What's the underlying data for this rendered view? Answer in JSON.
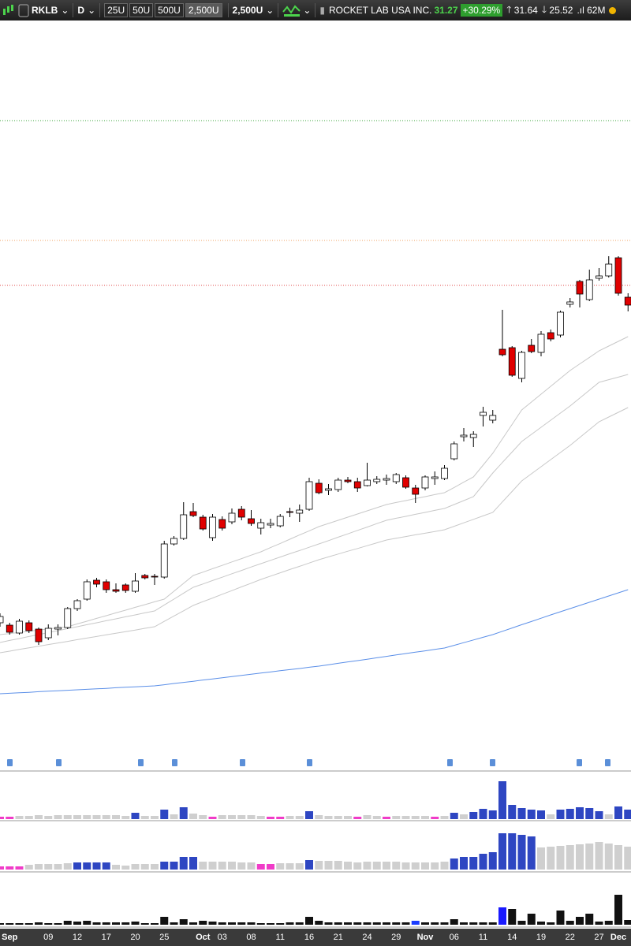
{
  "toolbar": {
    "symbol": "RKLB",
    "period": "D",
    "buttons": [
      "25U",
      "50U",
      "500U",
      "2,500U"
    ],
    "selected": "2,500U",
    "company": "ROCKET LAB USA INC.",
    "last": "31.27",
    "change": "+30.29%",
    "high": "31.64",
    "low": "25.52",
    "volume": "62M"
  },
  "chart_data": [
    {
      "type": "candlestick",
      "categories": [
        null,
        "Sep",
        null,
        null,
        null,
        "09",
        null,
        null,
        "12",
        null,
        null,
        "17",
        null,
        null,
        "20",
        null,
        null,
        "25",
        null,
        null,
        null,
        "Oct",
        null,
        "03",
        null,
        null,
        "08",
        null,
        null,
        "11",
        null,
        null,
        "16",
        null,
        null,
        "21",
        null,
        null,
        "24",
        null,
        null,
        "29",
        null,
        null,
        "Nov",
        null,
        null,
        "06",
        null,
        null,
        "11",
        null,
        null,
        "14",
        null,
        null,
        "19",
        null,
        null,
        "22",
        null,
        null,
        "27",
        null,
        "Dec",
        null
      ],
      "open": [
        8.25,
        8.1,
        7.6,
        8.25,
        7.85,
        7.3,
        7.85,
        7.95,
        9.15,
        9.75,
        10.95,
        10.85,
        10.35,
        10.65,
        10.25,
        11.25,
        11.2,
        11.15,
        13.25,
        13.6,
        15.3,
        14.95,
        13.65,
        14.8,
        14.65,
        15.45,
        14.85,
        14.25,
        14.45,
        14.4,
        15.3,
        15.2,
        15.45,
        17.1,
        16.65,
        16.7,
        17.3,
        17.2,
        16.95,
        17.2,
        17.3,
        17.2,
        17.45,
        16.8,
        16.8,
        17.4,
        17.4,
        18.65,
        20.05,
        20.0,
        21.4,
        21.1,
        25.6,
        25.7,
        23.75,
        25.85,
        25.4,
        26.65,
        26.5,
        28.45,
        29.9,
        28.75,
        30.1,
        30.25,
        31.4,
        28.9
      ],
      "high": [
        8.85,
        8.25,
        8.5,
        8.4,
        7.95,
        8.15,
        8.15,
        9.25,
        9.75,
        11.0,
        11.1,
        11.0,
        10.75,
        10.75,
        11.4,
        11.35,
        11.35,
        13.45,
        13.75,
        15.9,
        15.85,
        15.1,
        15.15,
        15.0,
        15.5,
        15.65,
        15.4,
        14.85,
        14.85,
        15.15,
        15.55,
        15.75,
        17.45,
        17.35,
        17.05,
        17.45,
        17.5,
        17.45,
        18.4,
        17.55,
        17.65,
        17.75,
        17.6,
        17.0,
        17.6,
        17.85,
        18.25,
        19.75,
        20.6,
        20.4,
        21.95,
        21.75,
        28.1,
        25.8,
        25.5,
        26.25,
        26.75,
        26.85,
        28.05,
        28.85,
        30.0,
        30.65,
        30.75,
        31.5,
        31.5,
        29.15
      ],
      "low": [
        8.0,
        7.5,
        7.5,
        7.6,
        6.85,
        7.15,
        7.45,
        7.85,
        9.0,
        9.65,
        10.5,
        10.15,
        10.15,
        10.15,
        10.15,
        11.0,
        10.65,
        11.05,
        13.15,
        13.5,
        14.95,
        14.1,
        13.45,
        14.1,
        14.5,
        14.75,
        14.4,
        13.85,
        14.25,
        14.3,
        14.95,
        14.65,
        15.35,
        16.4,
        16.35,
        16.55,
        17.1,
        16.55,
        16.9,
        17.05,
        17.0,
        17.05,
        16.75,
        15.85,
        16.65,
        17.0,
        17.3,
        18.55,
        19.75,
        19.4,
        20.7,
        20.9,
        25.15,
        23.85,
        23.5,
        25.35,
        25.15,
        26.1,
        26.35,
        28.25,
        28.25,
        28.65,
        29.95,
        30.15,
        29.0,
        28.0
      ],
      "close": [
        8.65,
        7.65,
        8.35,
        7.75,
        7.05,
        7.9,
        7.95,
        9.15,
        9.65,
        10.85,
        10.7,
        10.35,
        10.25,
        10.3,
        10.9,
        11.1,
        11.15,
        13.25,
        13.6,
        15.1,
        15.05,
        14.2,
        14.95,
        14.25,
        15.2,
        14.95,
        14.55,
        14.6,
        14.55,
        15.0,
        15.25,
        15.4,
        17.2,
        16.5,
        16.75,
        17.3,
        17.2,
        16.8,
        17.3,
        17.35,
        17.4,
        17.65,
        16.85,
        16.4,
        17.5,
        17.5,
        18.05,
        19.6,
        20.15,
        20.2,
        21.6,
        21.4,
        25.25,
        23.95,
        25.4,
        25.45,
        26.55,
        26.25,
        27.95,
        28.6,
        29.1,
        30.0,
        30.25,
        31.0,
        29.15,
        28.4
      ],
      "up_color": "#ffffff",
      "down_color": "#e00000",
      "ylim": [
        0,
        46.5
      ],
      "lines": [
        {
          "color": "#c8c8c8",
          "values": [
            7.5,
            7.57,
            7.64,
            7.71,
            7.79,
            7.86,
            7.93,
            8.0,
            8.18,
            8.35,
            8.53,
            8.7,
            8.88,
            9.05,
            9.23,
            9.4,
            9.58,
            9.75,
            10.25,
            10.75,
            11.25,
            11.46,
            11.68,
            11.89,
            12.11,
            12.32,
            12.54,
            12.75,
            13.02,
            13.28,
            13.55,
            13.82,
            14.08,
            14.35,
            14.55,
            14.75,
            14.95,
            15.15,
            15.35,
            15.55,
            15.75,
            15.88,
            16.0,
            16.13,
            16.25,
            16.38,
            16.5,
            16.83,
            17.17,
            17.5,
            18.25,
            19.0,
            19.92,
            20.83,
            21.75,
            22.25,
            22.75,
            23.25,
            23.75,
            24.25,
            24.67,
            25.08,
            25.5,
            25.8,
            26.1,
            26.4
          ]
        },
        {
          "color": "#c8c8c8",
          "values": [
            7.0,
            7.13,
            7.25,
            7.38,
            7.5,
            7.63,
            7.75,
            7.88,
            8.0,
            8.13,
            8.25,
            8.38,
            8.5,
            8.63,
            8.75,
            8.88,
            9.0,
            9.38,
            9.75,
            10.13,
            10.5,
            10.71,
            10.93,
            11.14,
            11.36,
            11.57,
            11.79,
            12.0,
            12.21,
            12.42,
            12.63,
            12.83,
            13.04,
            13.25,
            13.46,
            13.68,
            13.89,
            14.11,
            14.32,
            14.54,
            14.75,
            14.88,
            15.0,
            15.13,
            15.25,
            15.38,
            15.5,
            15.75,
            16.0,
            16.25,
            17.0,
            17.75,
            18.42,
            19.08,
            19.75,
            20.2,
            20.65,
            21.1,
            21.55,
            22.0,
            22.5,
            23.0,
            23.5,
            23.67,
            23.83,
            24.0
          ]
        },
        {
          "color": "#c8c8c8",
          "values": [
            6.35,
            6.45,
            6.56,
            6.66,
            6.76,
            6.87,
            6.97,
            7.07,
            7.18,
            7.28,
            7.38,
            7.49,
            7.59,
            7.69,
            7.79,
            7.9,
            8.0,
            8.34,
            8.68,
            9.01,
            9.35,
            9.59,
            9.82,
            10.06,
            10.29,
            10.53,
            10.76,
            11.0,
            11.21,
            11.42,
            11.63,
            11.83,
            12.04,
            12.25,
            12.43,
            12.61,
            12.79,
            12.96,
            13.14,
            13.32,
            13.5,
            13.61,
            13.72,
            13.83,
            13.93,
            14.04,
            14.15,
            14.37,
            14.59,
            14.81,
            15.03,
            15.25,
            15.92,
            16.58,
            17.25,
            17.7,
            18.15,
            18.6,
            19.05,
            19.5,
            20.0,
            20.5,
            21.0,
            21.3,
            21.6,
            21.9
          ]
        },
        {
          "color": "#5b8fe8",
          "values": [
            3.75,
            3.78,
            3.81,
            3.84,
            3.88,
            3.91,
            3.94,
            3.97,
            4.0,
            4.03,
            4.06,
            4.09,
            4.13,
            4.16,
            4.19,
            4.22,
            4.25,
            4.32,
            4.4,
            4.47,
            4.54,
            4.62,
            4.69,
            4.76,
            4.84,
            4.91,
            4.99,
            5.06,
            5.13,
            5.21,
            5.28,
            5.35,
            5.43,
            5.5,
            5.59,
            5.68,
            5.77,
            5.85,
            5.94,
            6.03,
            6.12,
            6.21,
            6.3,
            6.39,
            6.47,
            6.56,
            6.65,
            6.82,
            6.99,
            7.16,
            7.33,
            7.5,
            7.71,
            7.92,
            8.13,
            8.33,
            8.54,
            8.75,
            8.95,
            9.15,
            9.35,
            9.55,
            9.75,
            9.95,
            10.15,
            10.35
          ]
        }
      ],
      "levels": [
        {
          "value": 40.1,
          "color": "#3aa63a"
        },
        {
          "value": 32.5,
          "color": "#f0a060"
        },
        {
          "value": 29.65,
          "color": "#e04848"
        }
      ]
    },
    {
      "type": "bar",
      "ylim": [
        0,
        60
      ],
      "values": [
        3,
        3,
        4,
        4,
        5,
        4,
        5,
        5,
        5,
        5,
        5,
        5,
        5,
        4,
        8,
        4,
        4,
        12,
        6,
        15,
        7,
        5,
        3,
        5,
        5,
        5,
        5,
        4,
        3,
        3,
        4,
        4,
        10,
        5,
        4,
        4,
        4,
        3,
        5,
        4,
        3,
        4,
        4,
        4,
        4,
        3,
        4,
        8,
        6,
        9,
        13,
        11,
        48,
        18,
        14,
        12,
        11,
        6,
        12,
        13,
        15,
        14,
        10,
        6,
        16,
        12
      ],
      "colors": [
        "#f03cc8",
        "#f03cc8",
        "#cfcfcf",
        "#cfcfcf",
        "#cfcfcf",
        "#cfcfcf",
        "#cfcfcf",
        "#cfcfcf",
        "#cfcfcf",
        "#cfcfcf",
        "#cfcfcf",
        "#cfcfcf",
        "#cfcfcf",
        "#cfcfcf",
        "#2e46c2",
        "#cfcfcf",
        "#cfcfcf",
        "#2e46c2",
        "#cfcfcf",
        "#2e46c2",
        "#cfcfcf",
        "#cfcfcf",
        "#f03cc8",
        "#cfcfcf",
        "#cfcfcf",
        "#cfcfcf",
        "#cfcfcf",
        "#cfcfcf",
        "#f03cc8",
        "#f03cc8",
        "#cfcfcf",
        "#cfcfcf",
        "#2e46c2",
        "#cfcfcf",
        "#cfcfcf",
        "#cfcfcf",
        "#cfcfcf",
        "#f03cc8",
        "#cfcfcf",
        "#cfcfcf",
        "#f03cc8",
        "#cfcfcf",
        "#cfcfcf",
        "#cfcfcf",
        "#cfcfcf",
        "#f03cc8",
        "#cfcfcf",
        "#2e46c2",
        "#cfcfcf",
        "#2e46c2",
        "#2e46c2",
        "#2e46c2",
        "#2e46c2",
        "#2e46c2",
        "#2e46c2",
        "#2e46c2",
        "#2e46c2",
        "#cfcfcf",
        "#2e46c2",
        "#2e46c2",
        "#2e46c2",
        "#2e46c2",
        "#2e46c2",
        "#cfcfcf",
        "#2e46c2",
        "#2e46c2"
      ]
    },
    {
      "type": "bar",
      "ylim": [
        0,
        60
      ],
      "values": [
        4,
        4,
        4,
        6,
        7,
        7,
        7,
        8,
        9,
        9,
        9,
        9,
        6,
        5,
        7,
        7,
        7,
        10,
        10,
        16,
        16,
        10,
        10,
        10,
        10,
        9,
        9,
        7,
        7,
        8,
        8,
        8,
        12,
        11,
        11,
        11,
        10,
        9,
        10,
        10,
        10,
        10,
        9,
        9,
        9,
        9,
        10,
        14,
        16,
        16,
        20,
        22,
        46,
        46,
        44,
        42,
        28,
        29,
        30,
        31,
        32,
        33,
        35,
        33,
        31,
        29
      ],
      "colors": [
        "#f03cc8",
        "#f03cc8",
        "#f03cc8",
        "#cfcfcf",
        "#cfcfcf",
        "#cfcfcf",
        "#cfcfcf",
        "#cfcfcf",
        "#2e46c2",
        "#2e46c2",
        "#2e46c2",
        "#2e46c2",
        "#cfcfcf",
        "#cfcfcf",
        "#cfcfcf",
        "#cfcfcf",
        "#cfcfcf",
        "#2e46c2",
        "#2e46c2",
        "#2e46c2",
        "#2e46c2",
        "#cfcfcf",
        "#cfcfcf",
        "#cfcfcf",
        "#cfcfcf",
        "#cfcfcf",
        "#cfcfcf",
        "#f03cc8",
        "#f03cc8",
        "#cfcfcf",
        "#cfcfcf",
        "#cfcfcf",
        "#2e46c2",
        "#cfcfcf",
        "#cfcfcf",
        "#cfcfcf",
        "#cfcfcf",
        "#cfcfcf",
        "#cfcfcf",
        "#cfcfcf",
        "#cfcfcf",
        "#cfcfcf",
        "#cfcfcf",
        "#cfcfcf",
        "#cfcfcf",
        "#cfcfcf",
        "#cfcfcf",
        "#2e46c2",
        "#2e46c2",
        "#2e46c2",
        "#2e46c2",
        "#2e46c2",
        "#2e46c2",
        "#2e46c2",
        "#2e46c2",
        "#2e46c2",
        "#cfcfcf",
        "#cfcfcf",
        "#cfcfcf",
        "#cfcfcf",
        "#cfcfcf",
        "#cfcfcf",
        "#cfcfcf",
        "#cfcfcf",
        "#cfcfcf",
        "#cfcfcf"
      ]
    },
    {
      "type": "bar",
      "ylim": [
        0,
        60
      ],
      "values": [
        2,
        2,
        2,
        2,
        3,
        2,
        2,
        5,
        4,
        5,
        3,
        3,
        3,
        3,
        4,
        2,
        2,
        10,
        3,
        7,
        3,
        5,
        4,
        3,
        3,
        3,
        3,
        2,
        2,
        2,
        3,
        3,
        10,
        5,
        3,
        3,
        3,
        3,
        3,
        3,
        3,
        3,
        3,
        5,
        3,
        3,
        3,
        7,
        3,
        3,
        3,
        3,
        22,
        20,
        5,
        14,
        4,
        3,
        18,
        5,
        10,
        14,
        4,
        5,
        38,
        6
      ],
      "colors": [
        "#111111",
        "#111111",
        "#111111",
        "#111111",
        "#111111",
        "#111111",
        "#111111",
        "#111111",
        "#111111",
        "#111111",
        "#111111",
        "#111111",
        "#111111",
        "#111111",
        "#111111",
        "#111111",
        "#111111",
        "#111111",
        "#111111",
        "#111111",
        "#111111",
        "#111111",
        "#111111",
        "#111111",
        "#111111",
        "#111111",
        "#111111",
        "#111111",
        "#111111",
        "#111111",
        "#111111",
        "#111111",
        "#111111",
        "#111111",
        "#111111",
        "#111111",
        "#111111",
        "#111111",
        "#111111",
        "#111111",
        "#111111",
        "#111111",
        "#111111",
        "#1a3cff",
        "#111111",
        "#111111",
        "#111111",
        "#111111",
        "#111111",
        "#111111",
        "#111111",
        "#111111",
        "#1a1aff",
        "#111111",
        "#111111",
        "#111111",
        "#111111",
        "#111111",
        "#111111",
        "#111111",
        "#111111",
        "#111111",
        "#111111",
        "#111111",
        "#111111",
        "#111111"
      ]
    }
  ]
}
